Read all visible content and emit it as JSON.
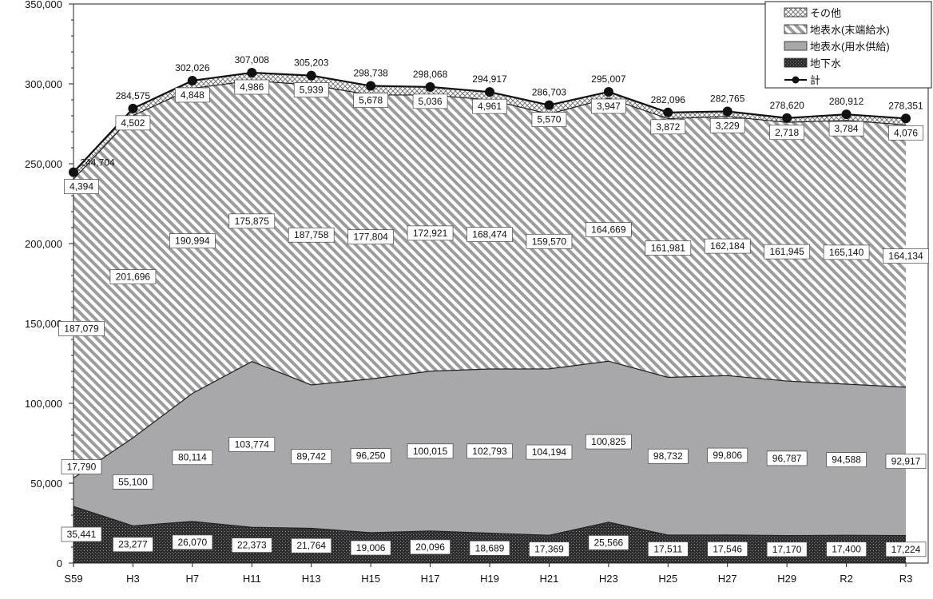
{
  "chart_data": {
    "type": "area",
    "stacked": true,
    "categories": [
      "S59",
      "H3",
      "H7",
      "H11",
      "H13",
      "H15",
      "H17",
      "H19",
      "H21",
      "H23",
      "H25",
      "H27",
      "H29",
      "R2",
      "R3"
    ],
    "series": [
      {
        "name": "地下水",
        "pattern": "dark-dots",
        "values": [
          35441,
          23277,
          26070,
          22373,
          21764,
          19006,
          20096,
          18689,
          17369,
          25566,
          17511,
          17546,
          17170,
          17400,
          17224
        ]
      },
      {
        "name": "地表水(用水供給)",
        "pattern": "solid-gray",
        "values": [
          17790,
          55100,
          80114,
          103774,
          89742,
          96250,
          100015,
          102793,
          104194,
          100825,
          98732,
          99806,
          96787,
          94588,
          92917
        ]
      },
      {
        "name": "地表水(末端給水)",
        "pattern": "diagonal-hatch",
        "values": [
          187079,
          201696,
          190994,
          175875,
          187758,
          177804,
          172921,
          168474,
          159570,
          164669,
          161981,
          162184,
          161945,
          165140,
          164134
        ]
      },
      {
        "name": "その他",
        "pattern": "crosshatch",
        "values": [
          4394,
          4502,
          4848,
          4986,
          5939,
          5678,
          5036,
          4961,
          5570,
          3947,
          3872,
          3229,
          2718,
          3784,
          4076
        ]
      }
    ],
    "total": {
      "name": "計",
      "values": [
        244704,
        284575,
        302026,
        307008,
        305203,
        298738,
        298068,
        294917,
        286703,
        295007,
        282096,
        282765,
        278620,
        280912,
        278351
      ]
    },
    "ylim": [
      0,
      350000
    ],
    "yticks": [
      "0",
      "50,000",
      "100,000",
      "150,000",
      "200,000",
      "250,000",
      "300,000",
      "350,000"
    ],
    "ytick_values": [
      0,
      50000,
      100000,
      150000,
      200000,
      250000,
      300000,
      350000
    ],
    "legend": {
      "placement": "top-right",
      "entries": [
        "その他",
        "地表水(末端給水)",
        "地表水(用水供給)",
        "地下水",
        "計"
      ]
    },
    "colors": {
      "groundwater": "#2b2b2b",
      "supply": "#a8a8aa",
      "hatch": "#9a9a9a",
      "line": "#111111"
    }
  }
}
